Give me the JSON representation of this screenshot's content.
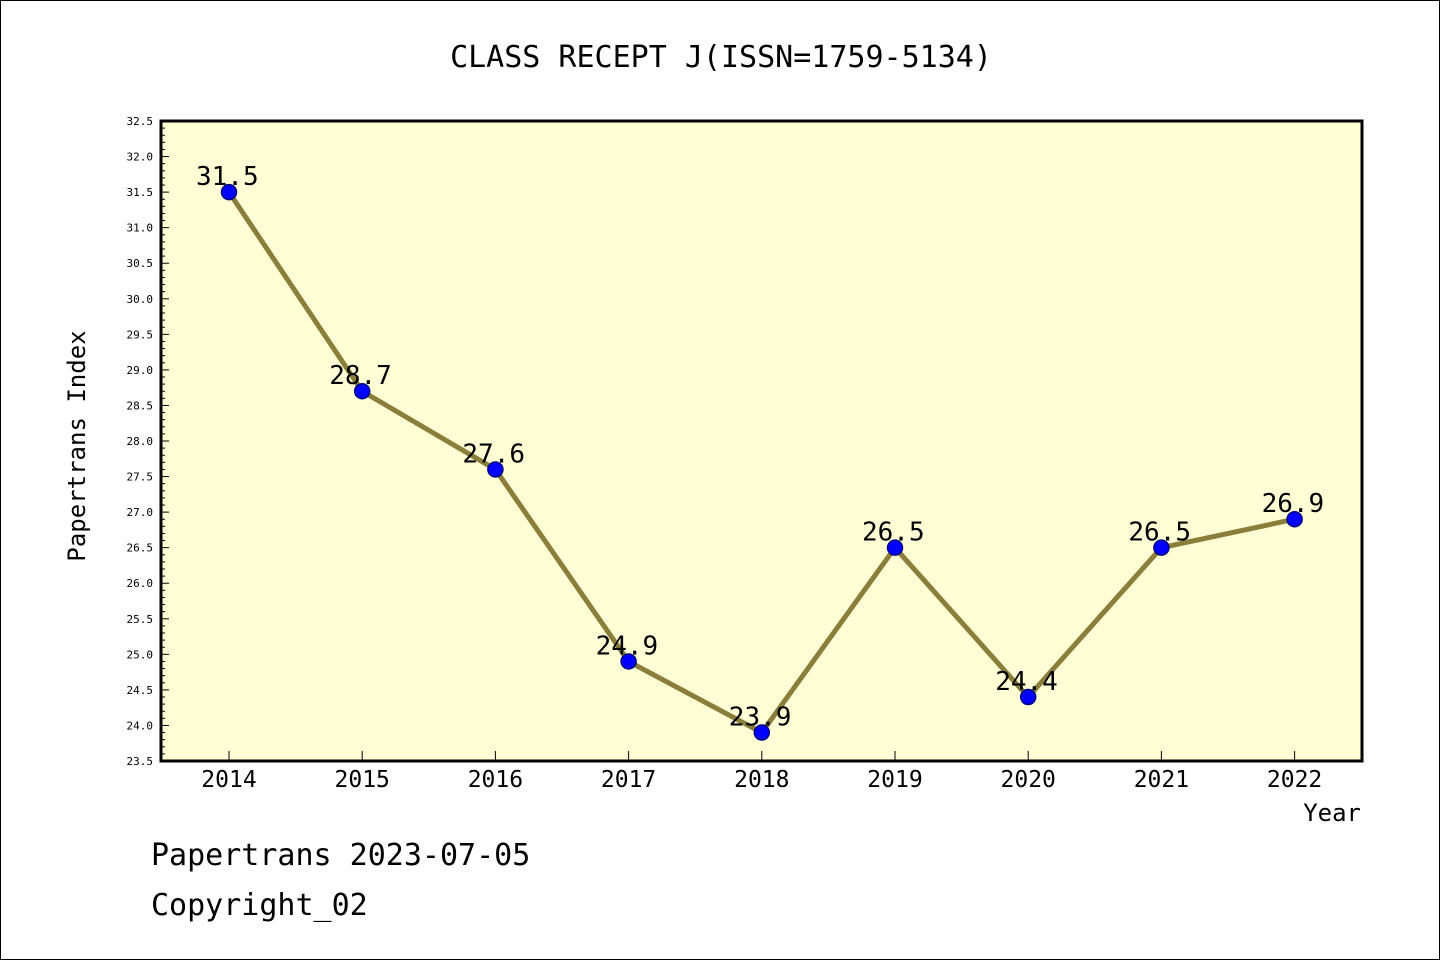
{
  "chart_data": {
    "type": "line",
    "title": "CLASS RECEPT J(ISSN=1759-5134)",
    "xlabel": "Year",
    "ylabel": "Papertrans Index",
    "categories": [
      "2014",
      "2015",
      "2016",
      "2017",
      "2018",
      "2019",
      "2020",
      "2021",
      "2022"
    ],
    "series": [
      {
        "values": [
          31.5,
          28.7,
          27.6,
          24.9,
          23.9,
          26.5,
          24.4,
          26.5,
          26.9
        ]
      }
    ],
    "data_labels": [
      "31.5",
      "28.7",
      "27.6",
      "24.9",
      "23.9",
      "26.5",
      "24.4",
      "26.5",
      "26.9"
    ],
    "ylim": [
      23.5,
      32.5
    ],
    "y_ticks": [
      "23.5",
      "24.0",
      "24.5",
      "25.0",
      "25.5",
      "26.0",
      "26.5",
      "27.0",
      "27.5",
      "28.0",
      "28.5",
      "29.0",
      "29.5",
      "30.0",
      "30.5",
      "31.0",
      "31.5",
      "32.0",
      "32.5"
    ],
    "grid": false,
    "colors": {
      "plot_background": "#ffffd6",
      "line": "#8b7d3a",
      "marker": "#0000ff",
      "marker_edge": "#000080",
      "frame": "#000000"
    }
  },
  "footer": {
    "line1": "Papertrans 2023-07-05",
    "line2": "Copyright_02"
  }
}
